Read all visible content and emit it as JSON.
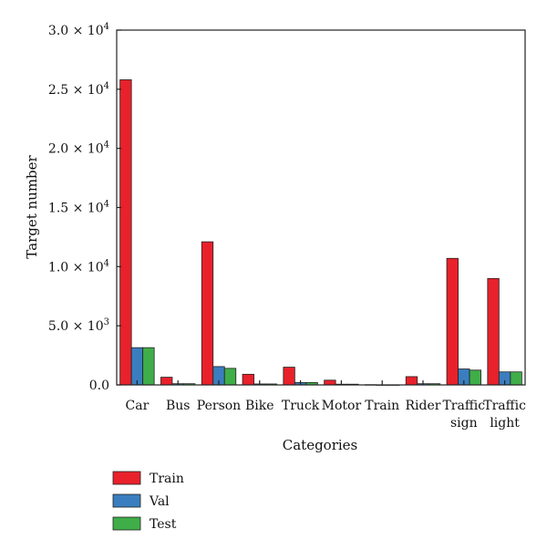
{
  "chart_data": {
    "type": "bar",
    "xlabel": "Categories",
    "ylabel": "Target number",
    "ylim": [
      0,
      30000
    ],
    "yticks": [
      {
        "value": 0,
        "mantissa": "0.0",
        "exp": ""
      },
      {
        "value": 5000,
        "mantissa": "5.0 × 10",
        "exp": "3"
      },
      {
        "value": 10000,
        "mantissa": "1.0 × 10",
        "exp": "4"
      },
      {
        "value": 15000,
        "mantissa": "1.5 × 10",
        "exp": "4"
      },
      {
        "value": 20000,
        "mantissa": "2.0 × 10",
        "exp": "4"
      },
      {
        "value": 25000,
        "mantissa": "2.5 × 10",
        "exp": "4"
      },
      {
        "value": 30000,
        "mantissa": "3.0 × 10",
        "exp": "4"
      }
    ],
    "categories": [
      "Car",
      "Bus",
      "Person",
      "Bike",
      "Truck",
      "Motor",
      "Train",
      "Rider",
      "Traffic sign",
      "Traffic light"
    ],
    "category_label_lines": [
      [
        "Car"
      ],
      [
        "Bus"
      ],
      [
        "Person"
      ],
      [
        "Bike"
      ],
      [
        "Truck"
      ],
      [
        "Motor"
      ],
      [
        "Train"
      ],
      [
        "Rider"
      ],
      [
        "Traffic",
        "sign"
      ],
      [
        "Traffic",
        "light"
      ]
    ],
    "series": [
      {
        "name": "Train",
        "color": "#e8212b",
        "values": [
          25800,
          650,
          12100,
          900,
          1500,
          400,
          20,
          700,
          10700,
          9000
        ]
      },
      {
        "name": "Val",
        "color": "#3a7ebf",
        "values": [
          3150,
          100,
          1550,
          80,
          200,
          60,
          5,
          100,
          1350,
          1100
        ]
      },
      {
        "name": "Test",
        "color": "#3fae49",
        "values": [
          3150,
          100,
          1400,
          80,
          200,
          60,
          5,
          100,
          1250,
          1100
        ]
      }
    ],
    "legend_position": "bottom-left",
    "grid": false
  }
}
